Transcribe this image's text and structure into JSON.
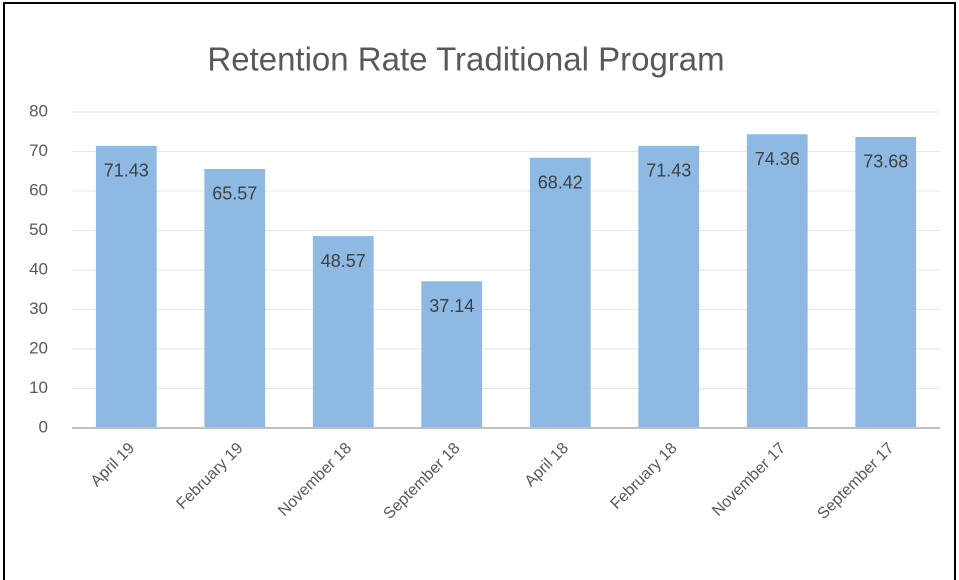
{
  "chart_data": {
    "type": "bar",
    "title": "Retention Rate Traditional Program",
    "categories": [
      "April 19",
      "February 19",
      "November 18",
      "September 18",
      "April 18",
      "February 18",
      "November 17",
      "September 17"
    ],
    "values": [
      71.43,
      65.57,
      48.57,
      37.14,
      68.42,
      71.43,
      74.36,
      73.68
    ],
    "color": "#8db9e3",
    "ylim": [
      0,
      80
    ],
    "yticks": [
      0,
      10,
      20,
      30,
      40,
      50,
      60,
      70,
      80
    ],
    "grid": true
  }
}
